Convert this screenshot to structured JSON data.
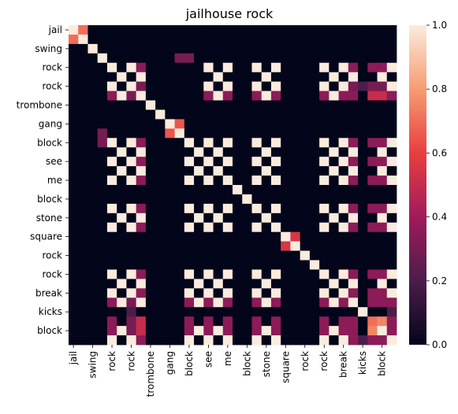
{
  "chart_data": {
    "type": "heatmap",
    "title": "jailhouse rock",
    "xlabel": "",
    "ylabel": "",
    "x_tick_labels": [
      "jail",
      "swing",
      "rock",
      "rock",
      "trombone",
      "gang",
      "block",
      "see",
      "me",
      "block",
      "stone",
      "square",
      "rock",
      "rock",
      "break",
      "kicks",
      "block"
    ],
    "y_tick_labels": [
      "jail",
      "swing",
      "rock",
      "rock",
      "trombone",
      "gang",
      "block",
      "see",
      "me",
      "block",
      "stone",
      "square",
      "rock",
      "rock",
      "break",
      "kicks",
      "block"
    ],
    "colorbar": {
      "min": 0.0,
      "max": 1.0,
      "ticks": [
        0.0,
        0.2,
        0.4,
        0.6,
        0.8,
        1.0
      ],
      "tick_labels": [
        "0.0",
        "0.2",
        "0.4",
        "0.6",
        "0.8",
        "1.0"
      ],
      "colormap": [
        "#03051a",
        "#4c1d4b",
        "#a11a5b",
        "#e83f3f",
        "#f69c73",
        "#faebdd"
      ]
    },
    "n_rows": 34,
    "n_cols": 34,
    "values": [
      [
        1,
        0.7,
        0,
        0,
        0,
        0,
        0,
        0,
        0,
        0,
        0,
        0,
        0,
        0,
        0,
        0,
        0,
        0,
        0,
        0,
        0,
        0,
        0,
        0,
        0,
        0,
        0,
        0,
        0,
        0,
        0,
        0,
        0,
        0
      ],
      [
        0.7,
        1,
        0,
        0,
        0,
        0,
        0,
        0,
        0,
        0,
        0,
        0,
        0,
        0,
        0,
        0,
        0,
        0,
        0,
        0,
        0,
        0,
        0,
        0,
        0,
        0,
        0,
        0,
        0,
        0,
        0,
        0,
        0,
        0
      ],
      [
        0,
        0,
        1,
        0,
        0,
        0,
        0,
        0,
        0,
        0,
        0,
        0,
        0,
        0,
        0,
        0,
        0,
        0,
        0,
        0,
        0,
        0,
        0,
        0,
        0,
        0,
        0,
        0,
        0,
        0,
        0,
        0,
        0,
        0
      ],
      [
        0,
        0,
        0,
        1,
        0,
        0,
        0,
        0,
        0,
        0,
        0,
        0.3,
        0.3,
        0,
        0,
        0,
        0,
        0,
        0,
        0,
        0,
        0,
        0,
        0,
        0,
        0,
        0,
        0,
        0,
        0,
        0,
        0,
        0,
        0
      ],
      [
        0,
        0,
        0,
        0,
        1,
        0,
        1,
        0.35,
        0,
        0,
        0,
        0,
        0,
        0,
        1,
        0,
        1,
        0,
        0,
        1,
        0,
        1,
        0,
        0,
        0,
        0,
        1,
        0,
        1,
        0.35,
        0,
        0.35,
        0.35,
        1
      ],
      [
        0,
        0,
        0,
        0,
        0,
        1,
        0,
        1,
        0,
        0,
        0,
        0,
        0,
        0,
        0,
        1,
        0,
        0,
        0,
        0,
        1,
        0,
        0,
        0,
        0,
        0,
        0,
        1,
        0,
        1,
        0,
        0,
        1,
        0
      ],
      [
        0,
        0,
        0,
        0,
        1,
        0,
        1,
        0.3,
        0,
        0,
        0,
        0,
        0,
        0,
        1,
        0,
        1,
        0,
        0,
        1,
        0,
        1,
        0,
        0,
        0,
        0,
        1,
        0,
        1,
        0.3,
        0.2,
        0.3,
        0.3,
        1
      ],
      [
        0,
        0,
        0,
        0,
        0.35,
        1,
        0.3,
        1,
        0,
        0,
        0,
        0,
        0,
        0,
        0.35,
        1,
        0.35,
        0,
        0,
        0.35,
        1,
        0.35,
        0,
        0,
        0,
        0,
        0.35,
        1,
        0.35,
        0.35,
        0,
        0.5,
        0.5,
        0.35
      ],
      [
        0,
        0,
        0,
        0,
        0,
        0,
        0,
        0,
        1,
        0,
        0,
        0,
        0,
        0,
        0,
        0,
        0,
        0,
        0,
        0,
        0,
        0,
        0,
        0,
        0,
        0,
        0,
        0,
        0,
        0,
        0,
        0,
        0,
        0
      ],
      [
        0,
        0,
        0,
        0,
        0,
        0,
        0,
        0,
        0,
        1,
        0,
        0,
        0,
        0,
        0,
        0,
        0,
        0,
        0,
        0,
        0,
        0,
        0,
        0,
        0,
        0,
        0,
        0,
        0,
        0,
        0,
        0,
        0,
        0
      ],
      [
        0,
        0,
        0,
        0,
        0,
        0,
        0,
        0,
        0,
        0,
        1,
        0.65,
        0,
        0,
        0,
        0,
        0,
        0,
        0,
        0,
        0,
        0,
        0,
        0,
        0,
        0,
        0,
        0,
        0,
        0,
        0,
        0,
        0,
        0
      ],
      [
        0,
        0,
        0,
        0.3,
        0,
        0,
        0,
        0,
        0,
        0,
        0.65,
        1,
        0,
        0,
        0,
        0,
        0,
        0,
        0,
        0,
        0,
        0,
        0,
        0,
        0,
        0,
        0,
        0,
        0,
        0,
        0,
        0,
        0,
        0
      ],
      [
        0,
        0,
        0,
        0.3,
        1,
        0,
        1,
        0.35,
        0,
        0,
        0,
        0,
        1,
        0,
        1,
        0,
        1,
        0,
        0,
        1,
        0,
        1,
        0,
        0,
        0,
        0,
        1,
        0,
        1,
        0.35,
        0,
        0.35,
        0.35,
        1
      ],
      [
        0,
        0,
        0,
        0,
        0,
        1,
        0,
        1,
        0,
        0,
        0,
        0,
        0,
        1,
        0,
        1,
        0,
        0,
        0,
        0,
        1,
        0,
        0,
        0,
        0,
        0,
        0,
        1,
        0,
        1,
        0,
        0,
        1,
        0
      ],
      [
        0,
        0,
        0,
        0,
        1,
        0,
        1,
        0.35,
        0,
        0,
        0,
        0,
        1,
        0,
        1,
        0,
        1,
        0,
        0,
        1,
        0,
        1,
        0,
        0,
        0,
        0,
        1,
        0,
        1,
        0.35,
        0,
        0.35,
        0.35,
        1
      ],
      [
        0,
        0,
        0,
        0,
        0,
        1,
        0,
        1,
        0,
        0,
        0,
        0,
        0,
        1,
        0,
        1,
        0,
        0,
        0,
        0,
        1,
        0,
        0,
        0,
        0,
        0,
        0,
        1,
        0,
        1,
        0,
        0,
        1,
        0
      ],
      [
        0,
        0,
        0,
        0,
        1,
        0,
        1,
        0.35,
        0,
        0,
        0,
        0,
        1,
        0,
        1,
        0,
        1,
        0,
        0,
        1,
        0,
        1,
        0,
        0,
        0,
        0,
        1,
        0,
        1,
        0.35,
        0,
        0.35,
        0.35,
        1
      ],
      [
        0,
        0,
        0,
        0,
        0,
        0,
        0,
        0,
        0,
        0,
        0,
        0,
        0,
        0,
        0,
        0,
        0,
        1,
        0,
        0,
        0,
        0,
        0,
        0,
        0,
        0,
        0,
        0,
        0,
        0,
        0,
        0,
        0,
        0
      ],
      [
        0,
        0,
        0,
        0,
        0,
        0,
        0,
        0,
        0,
        0,
        0,
        0,
        0,
        0,
        0,
        0,
        0,
        0,
        1,
        0,
        0,
        0,
        0,
        0,
        0,
        0,
        0,
        0,
        0,
        0,
        0,
        0,
        0,
        0
      ],
      [
        0,
        0,
        0,
        0,
        1,
        0,
        1,
        0.35,
        0,
        0,
        0,
        0,
        1,
        0,
        1,
        0,
        1,
        0,
        0,
        1,
        0,
        1,
        0,
        0,
        0,
        0,
        1,
        0,
        1,
        0.35,
        0,
        0.35,
        0.35,
        1
      ],
      [
        0,
        0,
        0,
        0,
        0,
        1,
        0,
        1,
        0,
        0,
        0,
        0,
        0,
        1,
        0,
        1,
        0,
        0,
        0,
        0,
        1,
        0,
        0,
        0,
        0,
        0,
        0,
        1,
        0,
        1,
        0,
        0,
        1,
        0
      ],
      [
        0,
        0,
        0,
        0,
        1,
        0,
        1,
        0.35,
        0,
        0,
        0,
        0,
        1,
        0,
        1,
        0,
        1,
        0,
        0,
        1,
        0,
        1,
        0,
        0,
        0,
        0,
        1,
        0,
        1,
        0.35,
        0,
        0.35,
        0.35,
        1
      ],
      [
        0,
        0,
        0,
        0,
        0,
        0,
        0,
        0,
        0,
        0,
        0,
        0,
        0,
        0,
        0,
        0,
        0,
        0,
        0,
        0,
        0,
        0,
        1,
        0.55,
        0,
        0,
        0,
        0,
        0,
        0,
        0,
        0,
        0,
        0
      ],
      [
        0,
        0,
        0,
        0,
        0,
        0,
        0,
        0,
        0,
        0,
        0,
        0,
        0,
        0,
        0,
        0,
        0,
        0,
        0,
        0,
        0,
        0,
        0.55,
        1,
        0,
        0,
        0,
        0,
        0,
        0,
        0,
        0,
        0,
        0
      ],
      [
        0,
        0,
        0,
        0,
        0,
        0,
        0,
        0,
        0,
        0,
        0,
        0,
        0,
        0,
        0,
        0,
        0,
        0,
        0,
        0,
        0,
        0,
        0,
        0,
        1,
        0,
        0,
        0,
        0,
        0,
        0,
        0,
        0,
        0
      ],
      [
        0,
        0,
        0,
        0,
        0,
        0,
        0,
        0,
        0,
        0,
        0,
        0,
        0,
        0,
        0,
        0,
        0,
        0,
        0,
        0,
        0,
        0,
        0,
        0,
        0,
        1,
        0,
        0,
        0,
        0,
        0,
        0,
        0,
        0
      ],
      [
        0,
        0,
        0,
        0,
        1,
        0,
        1,
        0.35,
        0,
        0,
        0,
        0,
        1,
        0,
        1,
        0,
        1,
        0,
        0,
        1,
        0,
        1,
        0,
        0,
        0,
        0,
        1,
        0,
        1,
        0.35,
        0,
        0.35,
        0.35,
        1
      ],
      [
        0,
        0,
        0,
        0,
        0,
        1,
        0,
        1,
        0,
        0,
        0,
        0,
        0,
        1,
        0,
        1,
        0,
        0,
        0,
        0,
        1,
        0,
        0,
        0,
        0,
        0,
        0,
        1,
        0,
        1,
        0,
        0,
        1,
        0
      ],
      [
        0,
        0,
        0,
        0,
        1,
        0,
        1,
        0.35,
        0,
        0,
        0,
        0,
        1,
        0,
        1,
        0,
        1,
        0,
        0,
        1,
        0,
        1,
        0,
        0,
        0,
        0,
        1,
        0,
        1,
        0.35,
        0,
        0.35,
        0.35,
        1
      ],
      [
        0,
        0,
        0,
        0,
        0.35,
        1,
        0.3,
        1,
        0,
        0,
        0,
        0,
        0.35,
        1,
        0.35,
        1,
        0.35,
        0,
        0,
        0.35,
        1,
        0.35,
        0,
        0,
        0,
        0,
        0.35,
        1,
        0.35,
        1,
        0,
        0.35,
        0.35,
        0.35
      ],
      [
        0,
        0,
        0,
        0,
        0,
        0,
        0.2,
        0,
        0,
        0,
        0,
        0,
        0,
        0,
        0,
        0,
        0,
        0,
        0,
        0,
        0,
        0,
        0,
        0,
        0,
        0,
        0,
        0,
        0,
        0,
        1,
        0,
        0,
        0.2
      ],
      [
        0,
        0,
        0,
        0,
        0.35,
        0,
        0.3,
        0.5,
        0,
        0,
        0,
        0,
        0.35,
        0,
        0.35,
        0,
        0.35,
        0,
        0,
        0.35,
        0,
        0.35,
        0,
        0,
        0,
        0,
        0.35,
        0,
        0.35,
        0.35,
        0,
        0.7,
        0.75,
        0.35
      ],
      [
        0,
        0,
        0,
        0,
        0.35,
        1,
        0.3,
        0.5,
        0,
        0,
        0,
        0,
        0.35,
        1,
        0.35,
        1,
        0.35,
        0,
        0,
        0.35,
        1,
        0.35,
        0,
        0,
        0,
        0,
        0.35,
        1,
        0.35,
        0.35,
        0,
        0.75,
        1,
        0.35
      ],
      [
        0,
        0,
        0,
        0,
        1,
        0,
        1,
        0.35,
        0,
        0,
        0,
        0,
        1,
        0,
        1,
        0,
        1,
        0,
        0,
        1,
        0,
        1,
        0,
        0,
        0,
        0,
        1,
        0,
        1,
        0.35,
        0.2,
        0.35,
        0.35,
        1
      ]
    ]
  }
}
